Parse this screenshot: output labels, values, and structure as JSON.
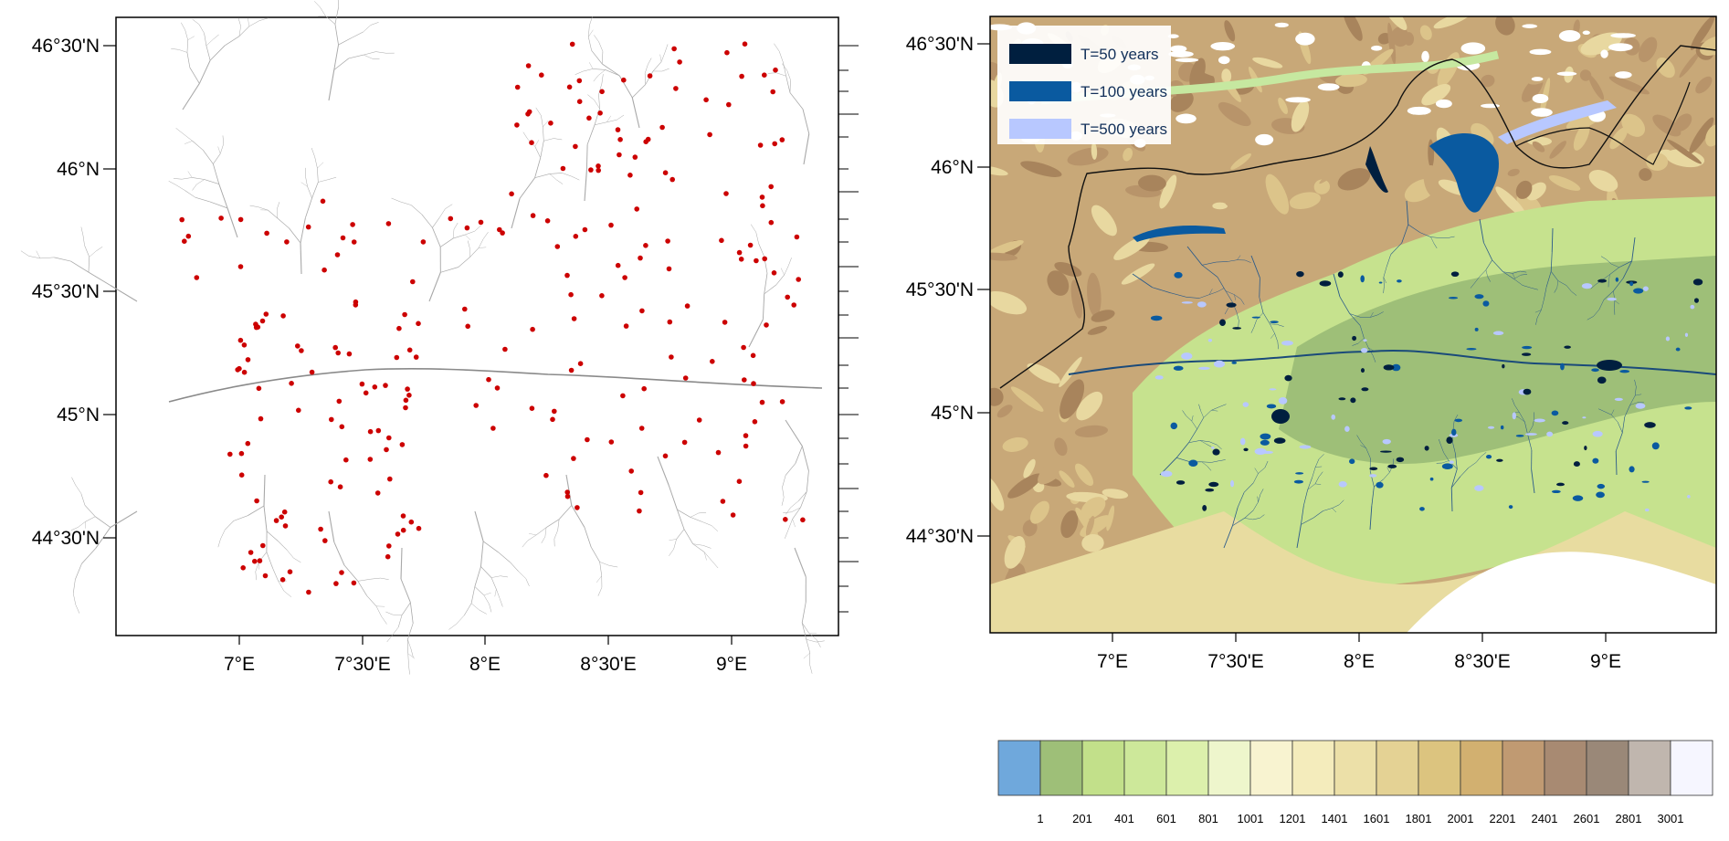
{
  "lat_labels": [
    "46°30'N",
    "46°N",
    "45°30'N",
    "45°N",
    "44°30'N"
  ],
  "lon_labels": [
    "7°E",
    "7°30'E",
    "8°E",
    "8°30'E",
    "9°E"
  ],
  "left_map": {
    "title": "",
    "river_network_color": "#9a9a9a",
    "station_color": "#cc0000"
  },
  "right_map": {
    "legend": [
      {
        "label": "T=50 years",
        "color": "#001f3f"
      },
      {
        "label": "T=100 years",
        "color": "#0a5aa0"
      },
      {
        "label": "T=500 years",
        "color": "#b8c8ff"
      }
    ],
    "border_color": "#111111"
  },
  "colorbar": {
    "colors": [
      "#6fa8dc",
      "#9ebf78",
      "#c2e08a",
      "#cde89a",
      "#dcf0ac",
      "#eef6cc",
      "#f8f3d0",
      "#f4ecbc",
      "#ece0a8",
      "#e4d294",
      "#dcc47f",
      "#d2b070",
      "#c09a72",
      "#a88a72",
      "#9a8878",
      "#c0b6ae",
      "#f6f6ff"
    ],
    "labels": [
      "1",
      "201",
      "401",
      "601",
      "801",
      "1001",
      "1201",
      "1401",
      "1601",
      "1801",
      "2001",
      "2201",
      "2401",
      "2601",
      "2801",
      "3001"
    ]
  }
}
